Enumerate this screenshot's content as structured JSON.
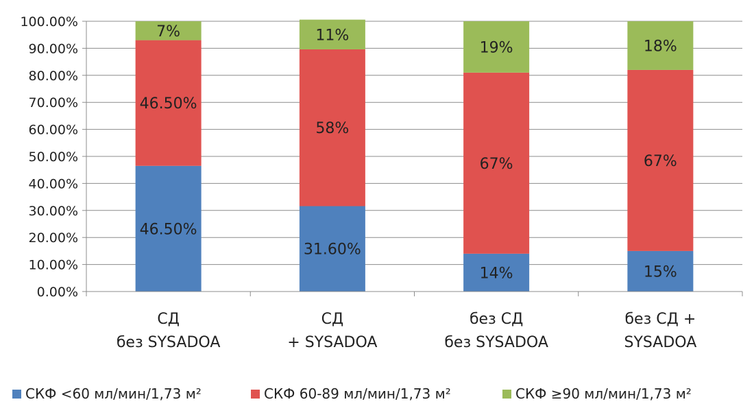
{
  "chart_data": {
    "type": "bar",
    "stacked": true,
    "title": "",
    "xlabel": "",
    "ylabel": "",
    "ylim": [
      0,
      100
    ],
    "y_ticks": [
      "0.00%",
      "10.00%",
      "20.00%",
      "30.00%",
      "40.00%",
      "50.00%",
      "60.00%",
      "70.00%",
      "80.00%",
      "90.00%",
      "100.00%"
    ],
    "grid": true,
    "legend_position": "bottom",
    "categories": [
      [
        "СД",
        "без SYSADOA"
      ],
      [
        "СД",
        "+ SYSADOA"
      ],
      [
        "без СД",
        "без SYSADOA"
      ],
      [
        "без СД +",
        "SYSADOA"
      ]
    ],
    "series": [
      {
        "name": "СКФ <60 мл/мин/1,73 м²",
        "color": "#4f81bd",
        "values": [
          46.5,
          31.6,
          14,
          15
        ],
        "labels": [
          "46.50%",
          "31.60%",
          "14%",
          "15%"
        ]
      },
      {
        "name": "СКФ 60-89 мл/мин/1,73 м²",
        "color": "#e0524f",
        "values": [
          46.5,
          58,
          67,
          67
        ],
        "labels": [
          "46.50%",
          "58%",
          "67%",
          "67%"
        ]
      },
      {
        "name": "СКФ ≥90 мл/мин/1,73 м²",
        "color": "#9bbb59",
        "values": [
          7,
          11,
          19,
          18
        ],
        "labels": [
          "7%",
          "11%",
          "19%",
          "18%"
        ]
      }
    ]
  }
}
